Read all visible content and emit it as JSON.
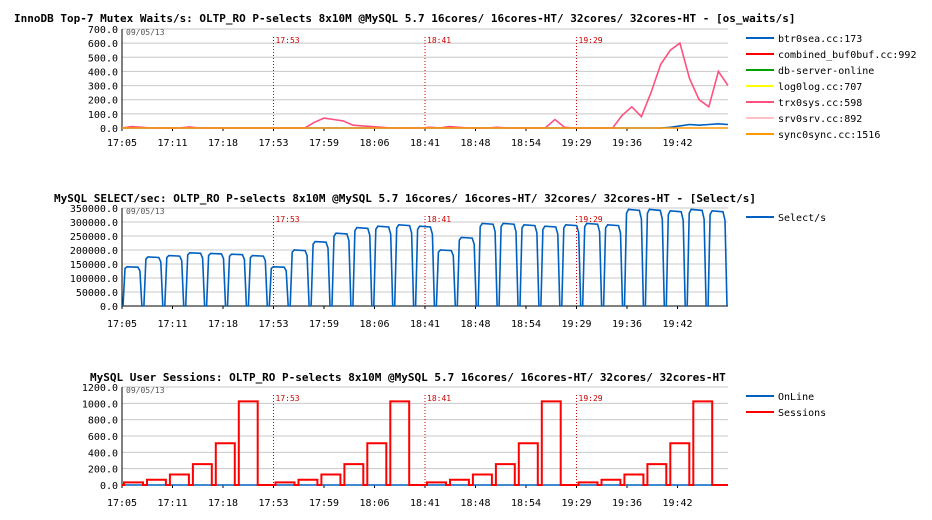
{
  "chart_data": [
    {
      "type": "line",
      "title": "InnoDB Top-7 Mutex Waits/s: OLTP_RO P-selects 8x10M @MySQL 5.7 16cores/ 16cores-HT/ 32cores/ 32cores-HT - [os_waits/s]",
      "date": "09/05/13",
      "y_ticks": [
        "0.0",
        "100.0",
        "200.0",
        "300.0",
        "400.0",
        "500.0",
        "600.0",
        "700.0"
      ],
      "ylim": [
        0,
        700
      ],
      "x_ticks": [
        "17:05",
        "17:11",
        "17:18",
        "17:53",
        "17:59",
        "18:06",
        "18:41",
        "18:48",
        "18:54",
        "19:29",
        "19:36",
        "19:42"
      ],
      "markers": [
        "17:53",
        "18:41",
        "19:29"
      ],
      "series": [
        {
          "name": "btr0sea.cc:173",
          "color": "#0060c0",
          "values": [
            0,
            0,
            0,
            0,
            0,
            0,
            0,
            0,
            0,
            0,
            0,
            0,
            0,
            0,
            0,
            0,
            0,
            0,
            0,
            0,
            0,
            0,
            0,
            0,
            0,
            0,
            0,
            0,
            0,
            0,
            0,
            0,
            0,
            0,
            0,
            0,
            0,
            0,
            0,
            0,
            0,
            0,
            0,
            0,
            0,
            0,
            0,
            0,
            0,
            0,
            0,
            0,
            0,
            0,
            0,
            0,
            0,
            5,
            15,
            25,
            20,
            25,
            30,
            25
          ]
        },
        {
          "name": "combined_buf0buf.cc:992",
          "color": "#ff0000",
          "values": []
        },
        {
          "name": "db-server-online",
          "color": "#00a000",
          "values": []
        },
        {
          "name": "log0log.cc:707",
          "color": "#ffff00",
          "values": []
        },
        {
          "name": "trx0sys.cc:598",
          "color": "#ff5080",
          "values": [
            0,
            10,
            5,
            0,
            0,
            0,
            0,
            8,
            0,
            0,
            0,
            0,
            0,
            0,
            0,
            0,
            0,
            0,
            0,
            0,
            40,
            70,
            60,
            50,
            20,
            15,
            10,
            5,
            0,
            0,
            0,
            0,
            5,
            0,
            10,
            5,
            0,
            0,
            0,
            5,
            0,
            0,
            0,
            0,
            0,
            60,
            5,
            0,
            0,
            0,
            0,
            0,
            90,
            150,
            80,
            250,
            450,
            550,
            600,
            350,
            200,
            150,
            400,
            300
          ]
        },
        {
          "name": "srv0srv.cc:892",
          "color": "#ffc0c8",
          "values": []
        },
        {
          "name": "sync0sync.cc:1516",
          "color": "#ff9900",
          "values": [
            0,
            0,
            0,
            0,
            0,
            0,
            0,
            0,
            0,
            0,
            0,
            0,
            0,
            0,
            0,
            0,
            0,
            0,
            0,
            0,
            0,
            0,
            0,
            0,
            0,
            0,
            0,
            0,
            0,
            0,
            0,
            0,
            0,
            0,
            0,
            0,
            0,
            0,
            0,
            0,
            0,
            0,
            0,
            0,
            0,
            0,
            0,
            0,
            0,
            0,
            0,
            0,
            0,
            0,
            0,
            0,
            0,
            0,
            0,
            0,
            0,
            0,
            0,
            0
          ]
        }
      ]
    },
    {
      "type": "line",
      "title": "MySQL SELECT/sec: OLTP_RO P-selects 8x10M @MySQL 5.7 16cores/ 16cores-HT/ 32cores/ 32cores-HT - [Select/s]",
      "date": "09/05/13",
      "y_ticks": [
        "0.0",
        "50000.0",
        "100000.0",
        "150000.0",
        "200000.0",
        "250000.0",
        "300000.0",
        "350000.0"
      ],
      "ylim": [
        0,
        350000
      ],
      "x_ticks": [
        "17:05",
        "17:11",
        "17:18",
        "17:53",
        "17:59",
        "18:06",
        "18:41",
        "18:48",
        "18:54",
        "19:29",
        "19:36",
        "19:42"
      ],
      "markers": [
        "17:53",
        "18:41",
        "19:29"
      ],
      "series": [
        {
          "name": "Select/s",
          "color": "#0060c0",
          "plateaus": [
            140000,
            175000,
            180000,
            190000,
            188000,
            185000,
            180000,
            140000,
            200000,
            230000,
            260000,
            280000,
            285000,
            290000,
            285000,
            200000,
            245000,
            295000,
            295000,
            290000,
            285000,
            290000,
            295000,
            290000,
            345000,
            345000,
            340000,
            345000,
            340000
          ]
        }
      ]
    },
    {
      "type": "line",
      "title": "MySQL User Sessions: OLTP_RO P-selects 8x10M @MySQL 5.7 16cores/ 16cores-HT/ 32cores/ 32cores-HT",
      "date": "09/05/13",
      "y_ticks": [
        "0.0",
        "200.0",
        "400.0",
        "600.0",
        "800.0",
        "1000.0",
        "1200.0"
      ],
      "ylim": [
        0,
        1200
      ],
      "x_ticks": [
        "17:05",
        "17:11",
        "17:18",
        "17:53",
        "17:59",
        "18:06",
        "18:41",
        "18:48",
        "18:54",
        "19:29",
        "19:36",
        "19:42"
      ],
      "markers": [
        "17:53",
        "18:41",
        "19:29"
      ],
      "series": [
        {
          "name": "OnLine",
          "color": "#0060c0",
          "values": [
            0
          ]
        },
        {
          "name": "Sessions",
          "color": "#ff0000",
          "steps": [
            32,
            64,
            128,
            256,
            512,
            1024
          ]
        }
      ]
    }
  ]
}
